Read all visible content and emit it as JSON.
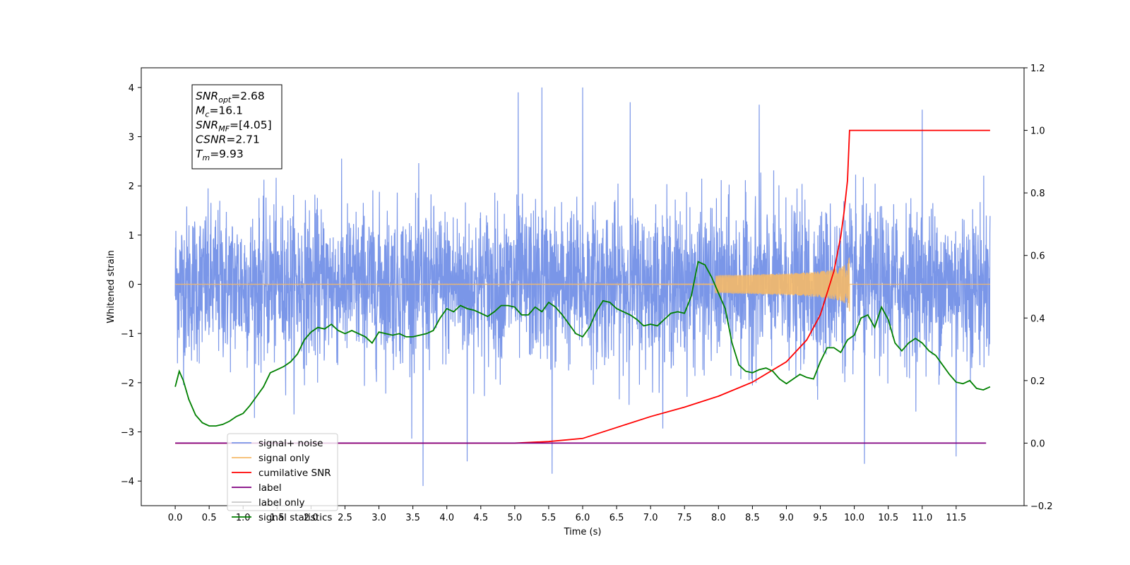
{
  "chart_data": {
    "type": "line",
    "title": "",
    "xlabel": "Time (s)",
    "ylabel": "Whitened strain",
    "y2label": "",
    "xlim": [
      -0.5,
      12.5
    ],
    "ylim": [
      -4.5,
      4.4
    ],
    "y2lim": [
      -0.2,
      1.2
    ],
    "xticks": [
      0.0,
      0.5,
      1.0,
      1.5,
      2.0,
      2.5,
      3.0,
      3.5,
      4.0,
      4.5,
      5.0,
      5.5,
      6.0,
      6.5,
      7.0,
      7.5,
      8.0,
      8.5,
      9.0,
      9.5,
      10.0,
      10.5,
      11.0,
      11.5
    ],
    "xtick_labels": [
      "0.0",
      "0.5",
      "1.0",
      "1.5",
      "2.0",
      "2.5",
      "3.0",
      "3.5",
      "4.0",
      "4.5",
      "5.0",
      "5.5",
      "6.0",
      "6.5",
      "7.0",
      "7.5",
      "8.0",
      "8.5",
      "9.0",
      "9.5",
      "10.0",
      "10.5",
      "11.0",
      "11.5"
    ],
    "yticks": [
      -4,
      -3,
      -2,
      -1,
      0,
      1,
      2,
      3,
      4
    ],
    "ytick_labels": [
      "−4",
      "−3",
      "−2",
      "−1",
      "0",
      "1",
      "2",
      "3",
      "4"
    ],
    "y2ticks": [
      -0.2,
      0.0,
      0.2,
      0.4,
      0.6,
      0.8,
      1.0,
      1.2
    ],
    "y2tick_labels": [
      "−0.2",
      "0.0",
      "0.2",
      "0.4",
      "0.6",
      "0.8",
      "1.0",
      "1.2"
    ],
    "legend_position": "lower-left",
    "grid": false,
    "annotation": {
      "lines": [
        {
          "sym": "SNR",
          "sub": "opt",
          "rest": "=2.68"
        },
        {
          "sym": "M",
          "sub": "c",
          "rest": "=16.1"
        },
        {
          "sym": "SNR",
          "sub": "MF",
          "rest": "=[4.05]"
        },
        {
          "sym": "CSNR",
          "sub": "",
          "rest": "=2.71"
        },
        {
          "sym": "T",
          "sub": "m",
          "rest": "=9.93"
        }
      ]
    },
    "noise_envelope": {
      "description": "dense whitened noise, roughly unit variance, spanning t 0.0 to 12.0 s",
      "t_range": [
        0.0,
        12.0
      ],
      "sigma": 1.0,
      "max_peak": 4.0,
      "min_trough": -4.1,
      "spikes": [
        {
          "x": 5.05,
          "y": 3.9
        },
        {
          "x": 5.4,
          "y": 4.0
        },
        {
          "x": 6.0,
          "y": 4.0
        },
        {
          "x": 6.7,
          "y": 3.7
        },
        {
          "x": 8.6,
          "y": 3.65
        },
        {
          "x": 11.0,
          "y": 3.55
        },
        {
          "x": 3.65,
          "y": -4.1
        },
        {
          "x": 5.55,
          "y": -3.85
        },
        {
          "x": 10.15,
          "y": -3.65
        },
        {
          "x": 4.3,
          "y": -3.6
        },
        {
          "x": 11.5,
          "y": -3.5
        }
      ]
    },
    "series": [
      {
        "name": "signal+ noise",
        "axis": "left",
        "color": "#7a96e8"
      },
      {
        "name": "signal only",
        "axis": "left",
        "color": "#f5b968",
        "chirp": {
          "t_start": 0.0,
          "t_merge": 9.93,
          "t_end": 12.0,
          "peak_amplitude": 0.58
        }
      },
      {
        "name": "cumilative SNR",
        "axis": "right",
        "color": "#ff0000",
        "x": [
          0.0,
          5.0,
          5.5,
          6.0,
          6.5,
          7.0,
          7.5,
          8.0,
          8.5,
          9.0,
          9.3,
          9.5,
          9.7,
          9.8,
          9.85,
          9.9,
          9.93,
          12.0
        ],
        "y": [
          0.0,
          0.0,
          0.005,
          0.015,
          0.05,
          0.085,
          0.115,
          0.15,
          0.195,
          0.26,
          0.33,
          0.41,
          0.55,
          0.66,
          0.74,
          0.84,
          1.0,
          1.0
        ]
      },
      {
        "name": "label",
        "axis": "right",
        "color": "#800080",
        "x": [
          0.0,
          11.94
        ],
        "y": [
          0.0,
          0.0
        ]
      },
      {
        "name": "label only",
        "axis": "right",
        "color": "#c8c8c8"
      },
      {
        "name": "signal statistics",
        "axis": "right",
        "color": "#008000",
        "x": [
          0.0,
          0.06,
          0.12,
          0.2,
          0.3,
          0.4,
          0.5,
          0.6,
          0.7,
          0.8,
          0.9,
          1.0,
          1.1,
          1.2,
          1.3,
          1.4,
          1.5,
          1.6,
          1.7,
          1.8,
          1.9,
          2.0,
          2.1,
          2.2,
          2.3,
          2.4,
          2.5,
          2.6,
          2.7,
          2.8,
          2.9,
          3.0,
          3.1,
          3.2,
          3.3,
          3.4,
          3.5,
          3.6,
          3.7,
          3.8,
          3.9,
          4.0,
          4.1,
          4.2,
          4.3,
          4.4,
          4.5,
          4.6,
          4.7,
          4.8,
          4.9,
          5.0,
          5.1,
          5.2,
          5.3,
          5.4,
          5.5,
          5.6,
          5.7,
          5.8,
          5.9,
          6.0,
          6.1,
          6.2,
          6.3,
          6.4,
          6.5,
          6.6,
          6.7,
          6.8,
          6.9,
          7.0,
          7.1,
          7.2,
          7.3,
          7.4,
          7.5,
          7.6,
          7.7,
          7.8,
          7.9,
          8.0,
          8.1,
          8.2,
          8.3,
          8.4,
          8.5,
          8.6,
          8.7,
          8.8,
          8.9,
          9.0,
          9.1,
          9.2,
          9.3,
          9.4,
          9.5,
          9.6,
          9.7,
          9.8,
          9.9,
          10.0,
          10.1,
          10.2,
          10.3,
          10.4,
          10.5,
          10.6,
          10.7,
          10.8,
          10.9,
          11.0,
          11.1,
          11.2,
          11.3,
          11.4,
          11.5,
          11.6,
          11.7,
          11.8,
          11.9,
          12.0
        ],
        "y": [
          0.18,
          0.23,
          0.2,
          0.14,
          0.09,
          0.065,
          0.055,
          0.055,
          0.06,
          0.07,
          0.085,
          0.095,
          0.12,
          0.15,
          0.18,
          0.225,
          0.235,
          0.245,
          0.26,
          0.285,
          0.33,
          0.355,
          0.37,
          0.365,
          0.38,
          0.36,
          0.35,
          0.36,
          0.35,
          0.34,
          0.32,
          0.355,
          0.35,
          0.345,
          0.35,
          0.34,
          0.34,
          0.345,
          0.35,
          0.36,
          0.4,
          0.43,
          0.42,
          0.44,
          0.43,
          0.425,
          0.415,
          0.405,
          0.42,
          0.44,
          0.44,
          0.435,
          0.41,
          0.41,
          0.435,
          0.42,
          0.45,
          0.435,
          0.41,
          0.38,
          0.35,
          0.34,
          0.37,
          0.42,
          0.455,
          0.45,
          0.43,
          0.42,
          0.41,
          0.395,
          0.375,
          0.38,
          0.375,
          0.395,
          0.415,
          0.42,
          0.415,
          0.47,
          0.58,
          0.57,
          0.53,
          0.48,
          0.43,
          0.32,
          0.25,
          0.23,
          0.225,
          0.235,
          0.24,
          0.23,
          0.205,
          0.19,
          0.205,
          0.22,
          0.21,
          0.205,
          0.26,
          0.305,
          0.305,
          0.29,
          0.33,
          0.345,
          0.4,
          0.41,
          0.37,
          0.435,
          0.395,
          0.32,
          0.295,
          0.32,
          0.335,
          0.32,
          0.295,
          0.28,
          0.25,
          0.22,
          0.195,
          0.19,
          0.2,
          0.175,
          0.17,
          0.18
        ]
      }
    ]
  }
}
